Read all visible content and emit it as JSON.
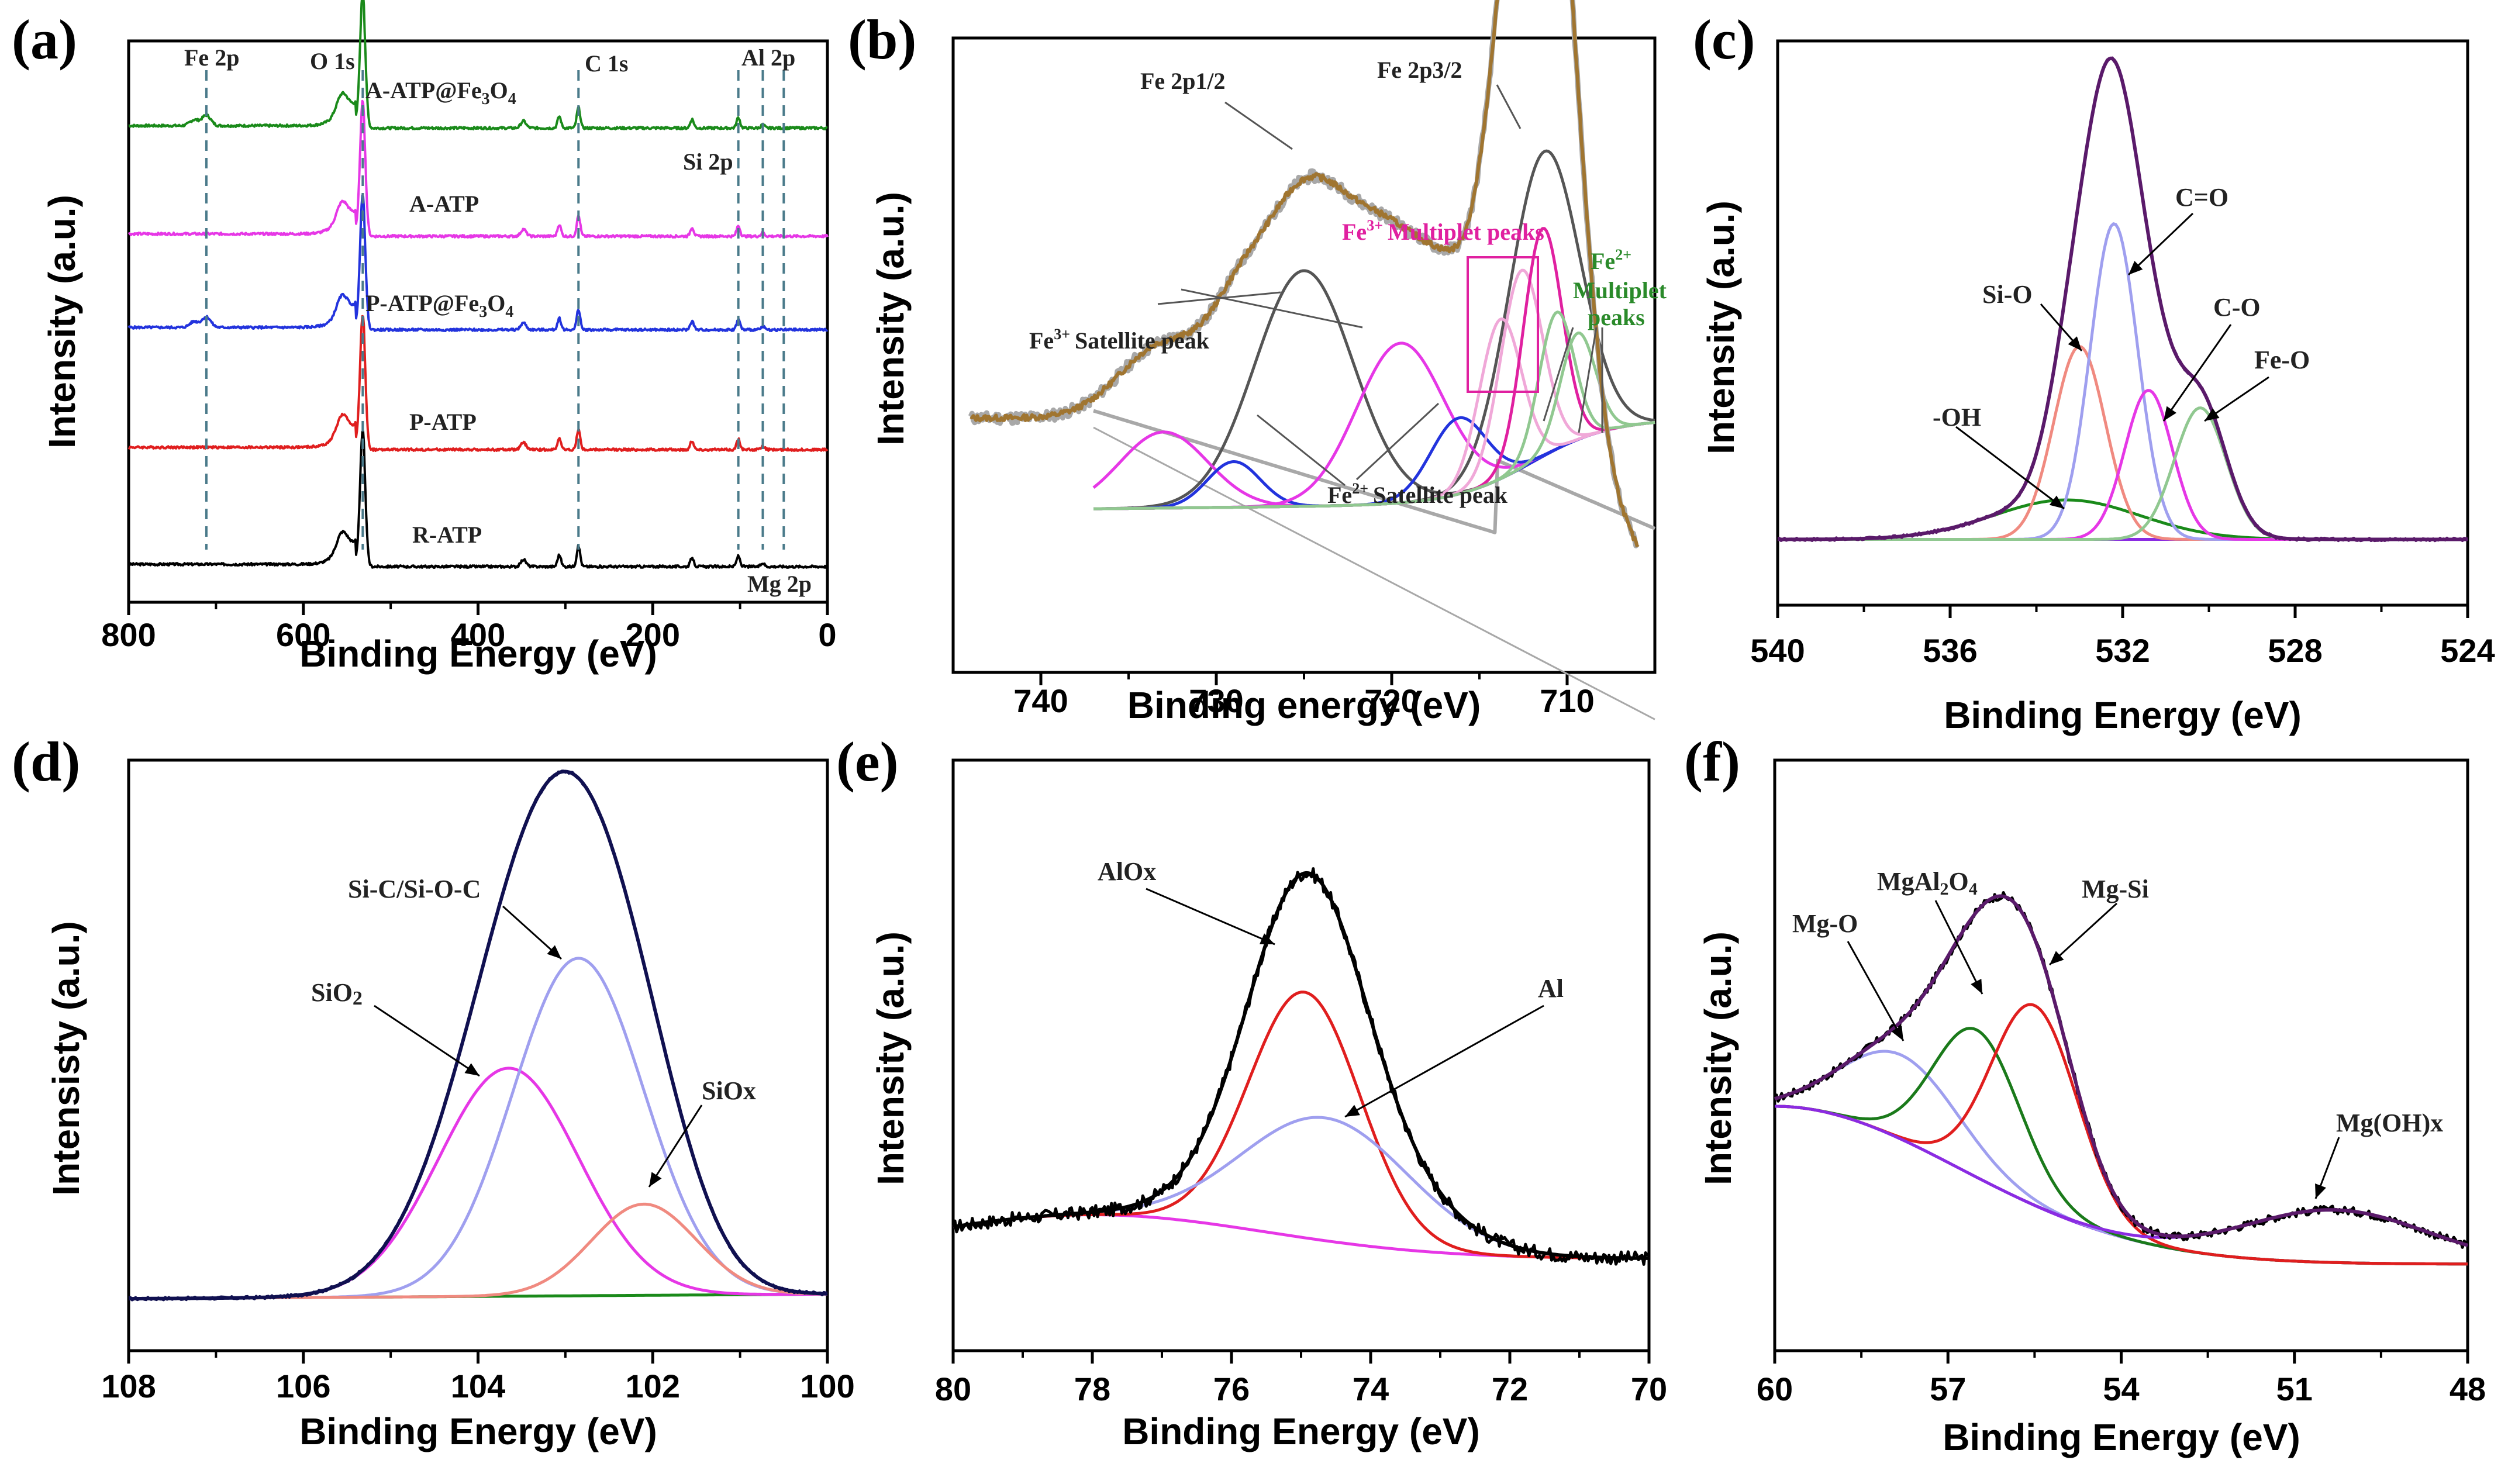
{
  "colors": {
    "black": "#000000",
    "green": "#1a8a1a",
    "magenta": "#e637e6",
    "blue": "#2233dd",
    "red": "#e01e1e",
    "purple": "#5a1a6a",
    "navy": "#101050",
    "lavender": "#9f9fef",
    "salmon": "#f08a80",
    "brown": "#a07530",
    "gray": "#a8a8a8",
    "pink": "#e020a0",
    "darkgray": "#555555",
    "lightpink": "#f0a8d8",
    "lightgreen": "#90c890",
    "violet": "#8a2be2",
    "darkgreen": "#1a7a1a",
    "olivegreen": "#2a8a2a"
  },
  "chart_data": [
    {
      "panel": "(a)",
      "type": "line",
      "xlabel": "Binding Energy (eV)",
      "ylabel": "Intensity (a.u.)",
      "xlim": [
        800,
        0
      ],
      "xticks": [
        800,
        600,
        400,
        200,
        0
      ],
      "series": [
        {
          "name": "R-ATP",
          "color": "black",
          "offset": 0
        },
        {
          "name": "P-ATP",
          "color": "red",
          "offset": 1
        },
        {
          "name": "P-ATP@Fe3O4",
          "color": "blue",
          "offset": 2
        },
        {
          "name": "A-ATP",
          "color": "magenta",
          "offset": 3
        },
        {
          "name": "A-ATP@Fe3O4",
          "color": "green",
          "offset": 4
        }
      ],
      "peaks": [
        {
          "label": "Fe 2p",
          "x": 711
        },
        {
          "label": "O 1s",
          "x": 532
        },
        {
          "label": "C 1s",
          "x": 285
        },
        {
          "label": "Si 2p",
          "x": 102
        },
        {
          "label": "Al 2p",
          "x": 74
        },
        {
          "label": "Mg 2p",
          "x": 50
        }
      ],
      "text": {
        "fe2p": "Fe 2p",
        "o1s": "O 1s",
        "c1s": "C 1s",
        "si2p": "Si 2p",
        "al2p": "Al 2p",
        "mg2p": "Mg 2p",
        "ratp": "R-ATP",
        "patp": "P-ATP",
        "aatp": "A-ATP",
        "patpfe": "P-ATP@Fe",
        "aatpfe": "A-ATP@Fe",
        "sub3": "3",
        "o": "O",
        "sub4": "4"
      }
    },
    {
      "panel": "(b)",
      "type": "line",
      "xlabel": "Binding energy (eV)",
      "ylabel": "Intensity (a.u.)",
      "xlim": [
        745,
        705
      ],
      "xticks": [
        740,
        730,
        720,
        710
      ],
      "components": [
        {
          "name": "Fe 2p1/2",
          "center": 725,
          "amp": 0.62,
          "width": 2.8,
          "color": "darkgray"
        },
        {
          "name": "Fe 2p3/2",
          "center": 711.3,
          "amp": 0.8,
          "width": 2.0,
          "color": "darkgray"
        },
        {
          "name": "Fe3+ satellite (2p1/2)",
          "center": 733,
          "amp": 0.2,
          "width": 2.5,
          "color": "magenta"
        },
        {
          "name": "Fe2+ satellite (2p1/2)",
          "center": 729,
          "amp": 0.12,
          "width": 1.5,
          "color": "blue"
        },
        {
          "name": "Fe3+ satellite (2p3/2)",
          "center": 719.5,
          "amp": 0.42,
          "width": 2.5,
          "color": "magenta"
        },
        {
          "name": "Fe2+ satellite (2p3/2)",
          "center": 716.2,
          "amp": 0.2,
          "width": 1.6,
          "color": "blue"
        },
        {
          "name": "Fe3+ multiplet 1",
          "center": 713.8,
          "amp": 0.42,
          "width": 1.2,
          "color": "lightpink"
        },
        {
          "name": "Fe3+ multiplet 2",
          "center": 712.6,
          "amp": 0.52,
          "width": 1.2,
          "color": "lightpink"
        },
        {
          "name": "Fe3+ multiplet 3",
          "center": 711.4,
          "amp": 0.6,
          "width": 1.1,
          "color": "pink"
        },
        {
          "name": "Fe2+ multiplet 1",
          "center": 710.6,
          "amp": 0.36,
          "width": 1.0,
          "color": "lightgreen"
        },
        {
          "name": "Fe2+ multiplet 2",
          "center": 709.4,
          "amp": 0.28,
          "width": 1.0,
          "color": "lightgreen"
        }
      ],
      "text": {
        "fe2p12": "Fe 2p1/2",
        "fe2p32": "Fe 2p3/2",
        "fe3mult": "Multiplet peaks",
        "fe3": "Fe",
        "sup3": "3+",
        "fe2": "Fe",
        "sup2": "2+",
        "multiplet": "Multiplet",
        "peaks": "peaks",
        "satellite": "Satellite peak"
      }
    },
    {
      "panel": "(c)",
      "type": "line",
      "xlabel": "Binding Energy (eV)",
      "ylabel": "Intensity (a.u.)",
      "xlim": [
        540,
        524
      ],
      "xticks": [
        540,
        536,
        532,
        528,
        524
      ],
      "components": [
        {
          "name": "-OH",
          "center": 533.3,
          "amp": 0.09,
          "width": 1.7,
          "color": "green"
        },
        {
          "name": "Si-O",
          "center": 533.0,
          "amp": 0.44,
          "width": 0.6,
          "color": "salmon"
        },
        {
          "name": "C=O",
          "center": 532.2,
          "amp": 0.72,
          "width": 0.55,
          "color": "lavender"
        },
        {
          "name": "C-O",
          "center": 531.4,
          "amp": 0.34,
          "width": 0.55,
          "color": "magenta"
        },
        {
          "name": "Fe-O",
          "center": 530.2,
          "amp": 0.3,
          "width": 0.6,
          "color": "lightgreen"
        }
      ],
      "text": {
        "oh": "-OH",
        "sio": "Si-O",
        "co2": "C=O",
        "co": "C-O",
        "feo": "Fe-O"
      }
    },
    {
      "panel": "(d)",
      "type": "line",
      "xlabel": "Binding Energy (eV)",
      "ylabel": "Intensisty (a.u.)",
      "xlim": [
        108,
        100
      ],
      "xticks": [
        108,
        106,
        104,
        102,
        100
      ],
      "components": [
        {
          "name": "SiO2",
          "center": 103.65,
          "amp": 0.5,
          "width": 0.8,
          "color": "magenta"
        },
        {
          "name": "Si-C/Si-O-C",
          "center": 102.85,
          "amp": 0.74,
          "width": 0.75,
          "color": "lavender"
        },
        {
          "name": "SiOx",
          "center": 102.1,
          "amp": 0.2,
          "width": 0.6,
          "color": "salmon"
        }
      ],
      "text": {
        "sio2": "SiO",
        "sub2": "2",
        "sic": "Si-C/Si-O-C",
        "siox": "SiOx"
      }
    },
    {
      "panel": "(e)",
      "type": "line",
      "xlabel": "Binding Energy (eV)",
      "ylabel": "Intensity (a.u.)",
      "xlim": [
        80,
        70
      ],
      "xticks": [
        80,
        78,
        76,
        74,
        72,
        70
      ],
      "components": [
        {
          "name": "AlOx",
          "center": 74.95,
          "amp": 0.56,
          "width": 0.8,
          "color": "red"
        },
        {
          "name": "Al",
          "center": 74.65,
          "amp": 0.28,
          "width": 1.2,
          "color": "lavender"
        }
      ],
      "text": {
        "alox": "AlOx",
        "al": "Al"
      }
    },
    {
      "panel": "(f)",
      "type": "line",
      "xlabel": "Binding Energy (eV)",
      "ylabel": "Intensity (a.u.)",
      "xlim": [
        60,
        48
      ],
      "xticks": [
        60,
        57,
        54,
        51,
        48
      ],
      "components": [
        {
          "name": "Mg-O",
          "center": 57.8,
          "amp": 0.16,
          "width": 1.0,
          "color": "lavender"
        },
        {
          "name": "MgAl2O4",
          "center": 56.5,
          "amp": 0.28,
          "width": 0.75,
          "color": "darkgreen"
        },
        {
          "name": "Mg-Si",
          "center": 55.5,
          "amp": 0.38,
          "width": 0.75,
          "color": "red"
        },
        {
          "name": "Mg(OH)x",
          "center": 50.3,
          "amp": 0.1,
          "width": 1.6,
          "color": "violet"
        }
      ],
      "text": {
        "mgo": "Mg-O",
        "mgal": "MgAl",
        "sub2": "2",
        "o": "O",
        "sub4": "4",
        "mgsi": "Mg-Si",
        "mgoh": "Mg(OH)x"
      }
    }
  ]
}
